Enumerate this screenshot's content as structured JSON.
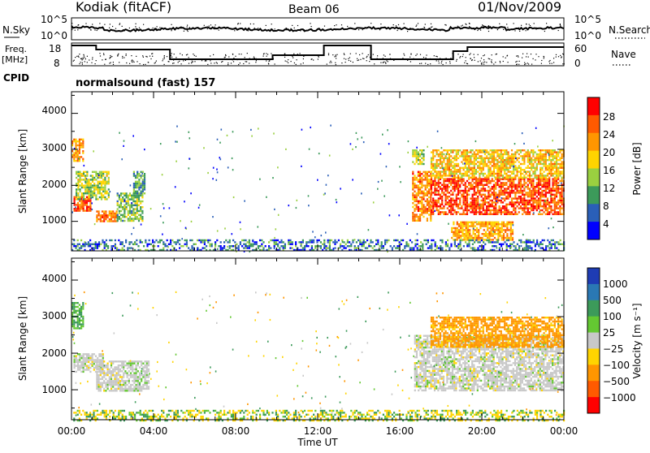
{
  "header": {
    "station": "Kodiak (fitACF)",
    "beam": "Beam 06",
    "date": "01/Nov/2009"
  },
  "strips": {
    "nsky_label": "N.Sky",
    "nsky_ticks": [
      "10^5",
      "10^0"
    ],
    "nsearch_label": "N.Search",
    "nsearch_ticks": [
      "10^5",
      "10^0"
    ],
    "freq_label_1": "Freq.",
    "freq_label_2": "[MHz]",
    "freq_ticks": [
      "18",
      "8"
    ],
    "nave_label": "Nave",
    "nave_ticks": [
      "60",
      "0"
    ],
    "cpid_label": "CPID",
    "cpid_text": "normalsound (fast) 157"
  },
  "axes": {
    "ylabel": "Slant Range [km]",
    "xlabel": "Time UT",
    "yticks": [
      "4000",
      "3000",
      "2000",
      "1000"
    ],
    "xticks": [
      "00:00",
      "04:00",
      "08:00",
      "12:00",
      "16:00",
      "20:00",
      "00:00"
    ]
  },
  "colorbars": {
    "power": {
      "label": "Power [dB]",
      "ticks": [
        "28",
        "24",
        "20",
        "16",
        "12",
        "8",
        "4"
      ],
      "colors": [
        "#ff0000",
        "#ff5a00",
        "#ff9600",
        "#ffd400",
        "#9ad040",
        "#3c9a5a",
        "#2a5fb8",
        "#0000ff"
      ]
    },
    "velocity": {
      "label": "Velocity [m s⁻¹]",
      "ticks": [
        "1000",
        "500",
        "100",
        "25",
        "−25",
        "−100",
        "−500",
        "−1000"
      ],
      "colors": [
        "#1e3cb4",
        "#2a78b4",
        "#3c9a5a",
        "#64c832",
        "#c8c8c8",
        "#ffd400",
        "#ff9600",
        "#ff5a00",
        "#ff0000"
      ]
    }
  },
  "chart_data": [
    {
      "type": "heatmap",
      "name": "power",
      "xlabel": "Time UT",
      "ylabel": "Slant Range [km]",
      "xlim": [
        "00:00",
        "24:00"
      ],
      "ylim": [
        180,
        4600
      ],
      "cbar_label": "Power [dB]",
      "cbar_range": [
        0,
        30
      ],
      "regions": [
        {
          "t": [
            0.1,
            0.9
          ],
          "r": [
            1300,
            1700
          ],
          "v": 25
        },
        {
          "t": [
            0.2,
            1.8
          ],
          "r": [
            1600,
            2400
          ],
          "v": 14
        },
        {
          "t": [
            1.2,
            2.2
          ],
          "r": [
            1000,
            1300
          ],
          "v": 22
        },
        {
          "t": [
            2.2,
            3.5
          ],
          "r": [
            1000,
            1800
          ],
          "v": 12
        },
        {
          "t": [
            3.0,
            3.6
          ],
          "r": [
            1800,
            2400
          ],
          "v": 10
        },
        {
          "t": [
            0.0,
            0.6
          ],
          "r": [
            2700,
            3300
          ],
          "v": 20
        },
        {
          "t": [
            16.6,
            17.2
          ],
          "r": [
            2600,
            3000
          ],
          "v": 14
        },
        {
          "t": [
            16.6,
            17.5
          ],
          "r": [
            1000,
            2400
          ],
          "v": 22
        },
        {
          "t": [
            17.5,
            24.0
          ],
          "r": [
            1200,
            2200
          ],
          "v": 25
        },
        {
          "t": [
            17.5,
            24.0
          ],
          "r": [
            2200,
            3000
          ],
          "v": 18
        },
        {
          "t": [
            18.5,
            21.5
          ],
          "r": [
            500,
            1000
          ],
          "v": 20
        },
        {
          "t": [
            0.0,
            24.0
          ],
          "r": [
            180,
            500
          ],
          "v": 7
        }
      ]
    },
    {
      "type": "heatmap",
      "name": "velocity",
      "xlabel": "Time UT",
      "ylabel": "Slant Range [km]",
      "xlim": [
        "00:00",
        "24:00"
      ],
      "ylim": [
        180,
        4600
      ],
      "cbar_label": "Velocity [m s⁻¹]",
      "cbar_range": [
        -1000,
        1000
      ],
      "regions": [
        {
          "t": [
            0.1,
            1.5
          ],
          "r": [
            1500,
            2000
          ],
          "v": 0
        },
        {
          "t": [
            1.2,
            2.5
          ],
          "r": [
            1000,
            1800
          ],
          "v": 0
        },
        {
          "t": [
            2.5,
            3.8
          ],
          "r": [
            1000,
            1800
          ],
          "v": 10
        },
        {
          "t": [
            0.0,
            0.6
          ],
          "r": [
            2700,
            3400
          ],
          "v": 60
        },
        {
          "t": [
            16.7,
            24.0
          ],
          "r": [
            1000,
            2500
          ],
          "v": 0
        },
        {
          "t": [
            17.5,
            24.0
          ],
          "r": [
            2200,
            3000
          ],
          "v": -120
        },
        {
          "t": [
            0.0,
            24.0
          ],
          "r": [
            180,
            450
          ],
          "v": -30
        }
      ]
    }
  ]
}
